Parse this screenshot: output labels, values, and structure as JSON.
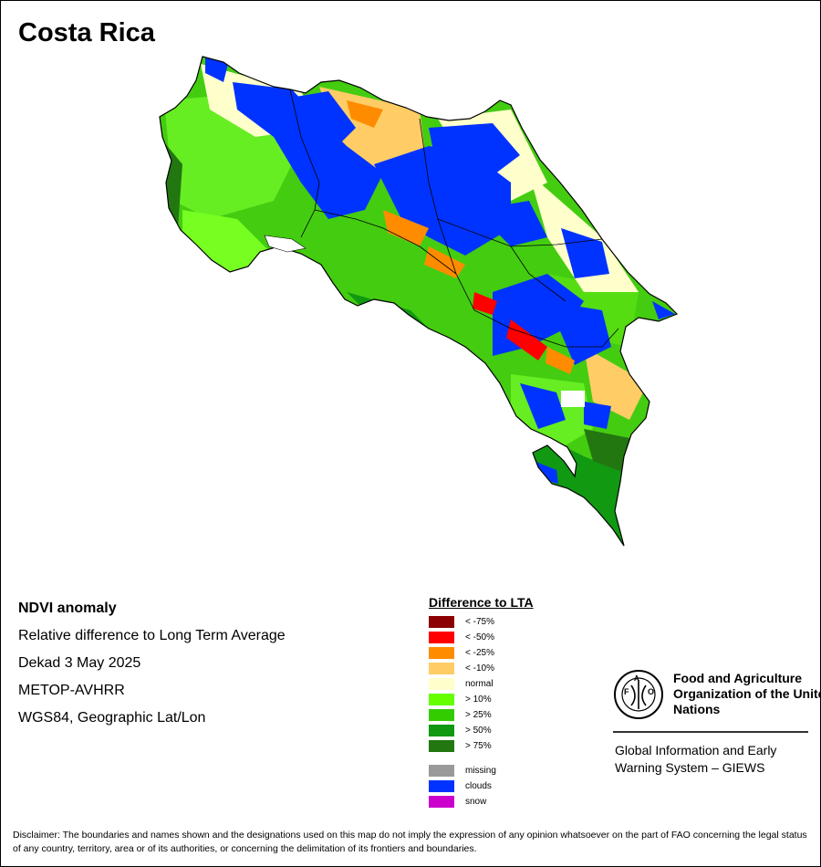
{
  "title": "Costa Rica",
  "info": {
    "product": "NDVI anomaly",
    "description": "Relative difference to Long Term Average",
    "period": "Dekad 3 May 2025",
    "sensor": "METOP-AVHRR",
    "projection": "WGS84, Geographic Lat/Lon"
  },
  "legend": {
    "title": "Difference to LTA",
    "classes": [
      {
        "label": "< -75%",
        "color": "#8b0000"
      },
      {
        "label": "< -50%",
        "color": "#ff0000"
      },
      {
        "label": "< -25%",
        "color": "#ff8c00"
      },
      {
        "label": "< -10%",
        "color": "#ffcc66"
      },
      {
        "label": "normal",
        "color": "#ffffcc"
      },
      {
        "label": "> 10%",
        "color": "#66ff00"
      },
      {
        "label": "> 25%",
        "color": "#33cc00"
      },
      {
        "label": "> 50%",
        "color": "#119911"
      },
      {
        "label": "> 75%",
        "color": "#227711"
      }
    ],
    "other": [
      {
        "label": "missing",
        "color": "#999999"
      },
      {
        "label": "clouds",
        "color": "#0033ff"
      },
      {
        "label": "snow",
        "color": "#cc00cc"
      }
    ]
  },
  "logo": {
    "org_name": "Food and Agriculture Organization of the United Nations",
    "system": "Global Information and Early Warning System – GIEWS"
  },
  "disclaimer": "Disclaimer: The boundaries and names shown and the designations used on this map do not imply the expression of any opinion whatsoever on the part of FAO concerning the legal status of any country, territory, area or of its authorities, or concerning the delimitation of its frontiers and boundaries."
}
